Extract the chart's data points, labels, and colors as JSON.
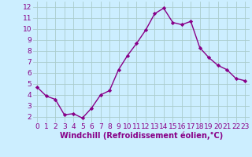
{
  "x": [
    0,
    1,
    2,
    3,
    4,
    5,
    6,
    7,
    8,
    9,
    10,
    11,
    12,
    13,
    14,
    15,
    16,
    17,
    18,
    19,
    20,
    21,
    22,
    23
  ],
  "y": [
    4.7,
    3.9,
    3.6,
    2.2,
    2.3,
    1.9,
    2.8,
    4.0,
    4.4,
    6.3,
    7.6,
    8.7,
    9.9,
    11.4,
    11.9,
    10.6,
    10.4,
    10.7,
    8.3,
    7.4,
    6.7,
    6.3,
    5.5,
    5.3
  ],
  "line_color": "#880088",
  "marker": "D",
  "marker_size": 2.2,
  "line_width": 1.0,
  "bg_color": "#cceeff",
  "grid_color": "#aacccc",
  "xlabel": "Windchill (Refroidissement éolien,°C)",
  "xlabel_color": "#880088",
  "xlabel_fontsize": 7,
  "tick_color": "#880088",
  "tick_fontsize": 6.5,
  "ylim": [
    1.5,
    12.5
  ],
  "xlim": [
    -0.5,
    23.5
  ],
  "yticks": [
    2,
    3,
    4,
    5,
    6,
    7,
    8,
    9,
    10,
    11,
    12
  ],
  "xticks": [
    0,
    1,
    2,
    3,
    4,
    5,
    6,
    7,
    8,
    9,
    10,
    11,
    12,
    13,
    14,
    15,
    16,
    17,
    18,
    19,
    20,
    21,
    22,
    23
  ]
}
